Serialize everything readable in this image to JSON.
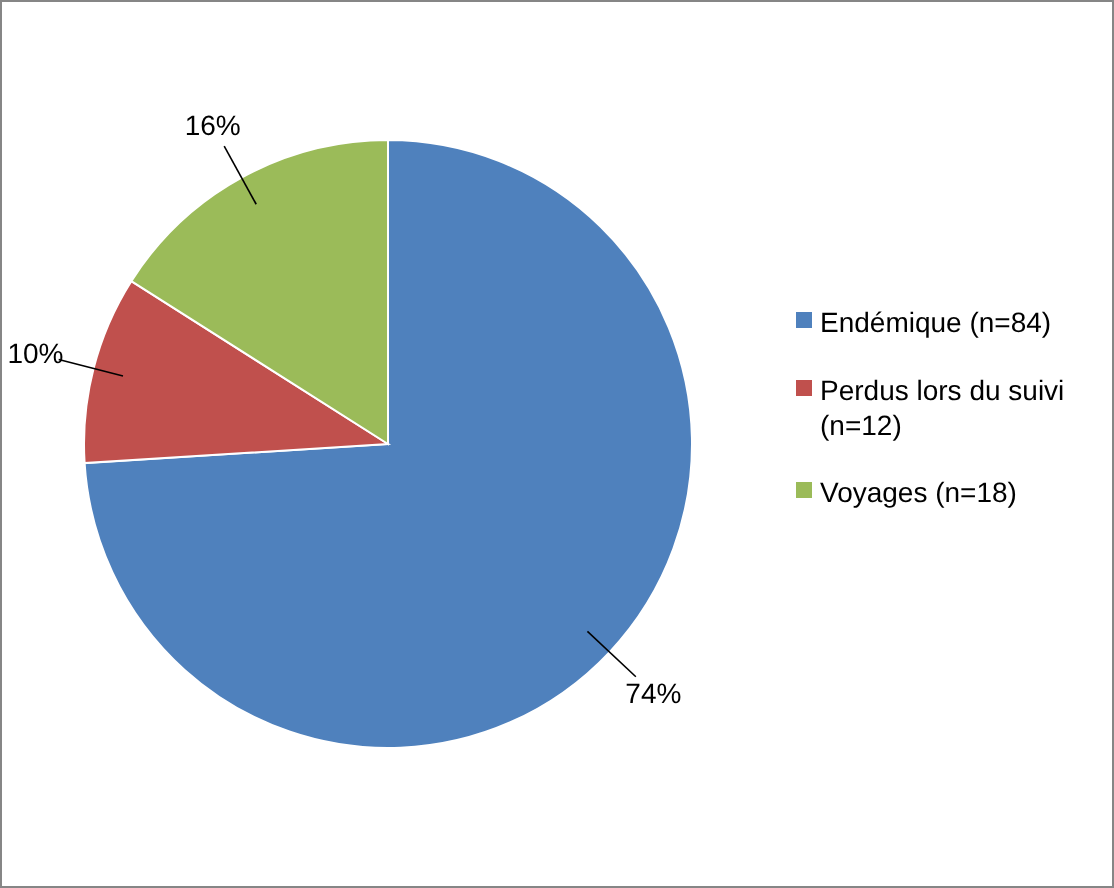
{
  "chart_data": {
    "type": "pie",
    "categories": [
      "Endémique (n=84)",
      "Perdus lors du suivi (n=12)",
      "Voyages (n=18)"
    ],
    "values": [
      74,
      10,
      16
    ],
    "colors": [
      "#4f81bd",
      "#c0504d",
      "#9bbb59"
    ],
    "value_labels": [
      "74%",
      "10%",
      "16%"
    ],
    "legend": "right"
  }
}
